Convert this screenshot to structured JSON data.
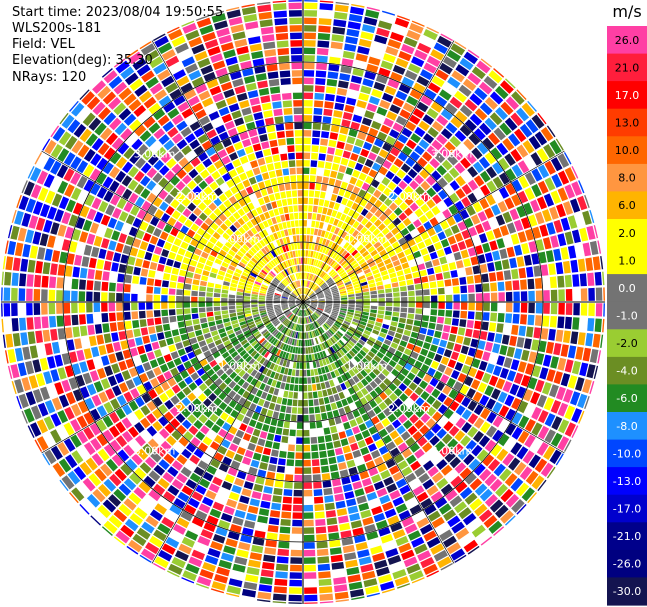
{
  "header": {
    "start_time": "Start time: 2023/08/04 19:50:55",
    "instrument": "WLS200s-181",
    "field": "Field: VEL",
    "elevation": "Elevation(deg): 35.30",
    "nrays": "NRays: 120"
  },
  "chart_data": {
    "type": "heatmap",
    "projection": "polar-ppi",
    "field": "VEL",
    "n_rays": 120,
    "elevation_deg": 35.3,
    "range_ring_labels": [
      "1.00km",
      "2.00km",
      "3.00km"
    ],
    "colorbar": {
      "units": "m/s",
      "ticks": [
        "26.0",
        "21.0",
        "17.0",
        "13.0",
        "10.0",
        "8.0",
        "6.0",
        "2.0",
        "1.0",
        "0.0",
        "-1.0",
        "-2.0",
        "-4.0",
        "-6.0",
        "-8.0",
        "-10.0",
        "-13.0",
        "-17.0",
        "-21.0",
        "-26.0",
        "-30.0"
      ],
      "colors": [
        "#ff3fa4",
        "#ff1e3c",
        "#ff0000",
        "#ff3c00",
        "#ff6600",
        "#ff9640",
        "#ffb400",
        "#ffff00",
        "#ffff00",
        "#737373",
        "#737373",
        "#9acd32",
        "#6b8e23",
        "#228b22",
        "#1e90ff",
        "#0046ff",
        "#0000ff",
        "#0000cd",
        "#00008b",
        "#000080",
        "#141450"
      ]
    }
  }
}
